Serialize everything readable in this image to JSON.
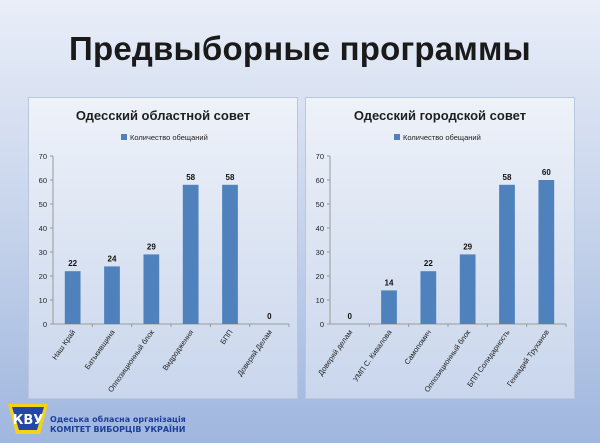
{
  "slide": {
    "title": "Предвыборные программы"
  },
  "logo": {
    "mark_text": "КВУ",
    "line1": "Одеська обласна організація",
    "line2": "КОМІТЕТ ВИБОРЦІВ УКРАЇНИ"
  },
  "colors": {
    "bar": "#4f81bd",
    "axis": "#999999",
    "grid": "#c8c8c8"
  },
  "chart_data": [
    {
      "type": "bar",
      "title": "Одесский областной совет",
      "legend": "Количество обещаний",
      "legend_position": "top",
      "categories": [
        "Наш Край",
        "Батькивщина",
        "Оппозиционный блок",
        "Видродження",
        "БПП",
        "Доверяй Делам"
      ],
      "series": [
        {
          "name": "Количество обещаний",
          "values": [
            22,
            24,
            29,
            58,
            58,
            0
          ]
        }
      ],
      "ylim": [
        0,
        70
      ],
      "yticks": [
        0,
        10,
        20,
        30,
        40,
        50,
        60,
        70
      ],
      "data_labels": true,
      "grid": false
    },
    {
      "type": "bar",
      "title": "Одесский городской совет",
      "legend": "Количество обещаний",
      "legend_position": "top",
      "categories": [
        "Доверяй делам",
        "УМП С. Кивалова",
        "Самопомич",
        "Оппозиционный блок",
        "БПП Солидарность",
        "Геннадий Труханов"
      ],
      "series": [
        {
          "name": "Количество обещаний",
          "values": [
            0,
            14,
            22,
            29,
            58,
            60
          ]
        }
      ],
      "ylim": [
        0,
        70
      ],
      "yticks": [
        0,
        10,
        20,
        30,
        40,
        50,
        60,
        70
      ],
      "data_labels": true,
      "grid": false
    }
  ]
}
